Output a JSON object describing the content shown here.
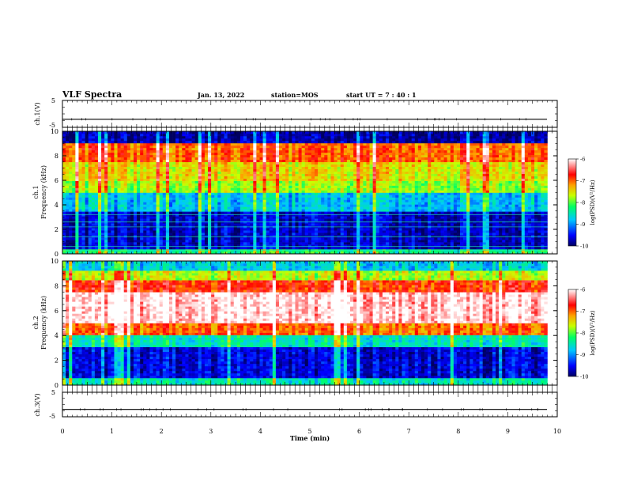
{
  "header": {
    "title": "VLF Spectra",
    "date": "Jan. 13, 2022",
    "station": "station=MOS",
    "start": "start UT =  7 : 40 : 1"
  },
  "chart_data": [
    {
      "type": "line",
      "name": "ch.1 waveform",
      "ylabel": "ch.1(V)",
      "ylim": [
        -5,
        5
      ],
      "yticks": [
        "5",
        "-5"
      ],
      "xlim": [
        0,
        10
      ],
      "level": -2
    },
    {
      "type": "heatmap",
      "name": "ch.1 spectrogram",
      "ylabel": "ch.1\nFrequency (kHz)",
      "ylim": [
        0,
        10
      ],
      "yticks": [
        "0",
        "2",
        "4",
        "6",
        "8",
        "10"
      ],
      "xlim": [
        0,
        10
      ],
      "data_end_min": 9.8,
      "colorbar": {
        "label": "log(PSD)(V²/Hz)",
        "range": [
          -10,
          -6
        ],
        "ticks": [
          "-6",
          "-7",
          "-8",
          "-9",
          "-10"
        ]
      },
      "bands_khz_logpsd": [
        {
          "from": 0.0,
          "to": 0.4,
          "value": -8.3
        },
        {
          "from": 0.4,
          "to": 3.5,
          "value": -9.7
        },
        {
          "from": 3.5,
          "to": 5.0,
          "value": -8.8
        },
        {
          "from": 5.0,
          "to": 6.0,
          "value": -7.8
        },
        {
          "from": 6.0,
          "to": 7.5,
          "value": -7.5
        },
        {
          "from": 7.5,
          "to": 9.0,
          "value": -7.0
        },
        {
          "from": 9.0,
          "to": 10.0,
          "value": -9.8
        }
      ],
      "lines_khz": [
        0.3,
        0.6,
        1.4,
        2.2,
        2.6,
        3.2
      ]
    },
    {
      "type": "heatmap",
      "name": "ch.2 spectrogram",
      "ylabel": "ch.2\nFrequency (kHz)",
      "ylim": [
        0,
        10
      ],
      "yticks": [
        "0",
        "2",
        "4",
        "6",
        "8",
        "10"
      ],
      "xlim": [
        0,
        10
      ],
      "data_end_min": 9.8,
      "colorbar": {
        "label": "log(PSD)(V²/Hz)",
        "range": [
          -10,
          -6
        ],
        "ticks": [
          "-6",
          "-7",
          "-8",
          "-9",
          "-10"
        ]
      },
      "bands_khz_logpsd": [
        {
          "from": 0.0,
          "to": 0.5,
          "value": -8.5
        },
        {
          "from": 0.5,
          "to": 3.0,
          "value": -9.6
        },
        {
          "from": 3.0,
          "to": 4.0,
          "value": -8.5
        },
        {
          "from": 4.0,
          "to": 5.0,
          "value": -7.0
        },
        {
          "from": 5.0,
          "to": 7.5,
          "value": -6.1
        },
        {
          "from": 7.5,
          "to": 8.5,
          "value": -6.8
        },
        {
          "from": 8.5,
          "to": 9.3,
          "value": -7.7
        },
        {
          "from": 9.3,
          "to": 10.0,
          "value": -8.7
        }
      ]
    },
    {
      "type": "line",
      "name": "ch.3 waveform",
      "ylabel": "ch.3(V)",
      "ylim": [
        -5,
        5
      ],
      "yticks": [
        "5",
        "-5"
      ],
      "xlim": [
        0,
        10
      ],
      "level": -2
    }
  ],
  "xaxis": {
    "label": "Time (min)",
    "ticks": [
      "0",
      "1",
      "2",
      "3",
      "4",
      "5",
      "6",
      "7",
      "8",
      "9",
      "10"
    ]
  },
  "colorscale": [
    "#000060",
    "#0000ff",
    "#00c8ff",
    "#00ff64",
    "#c8ff00",
    "#ffa000",
    "#ff0000",
    "#ffffff"
  ]
}
